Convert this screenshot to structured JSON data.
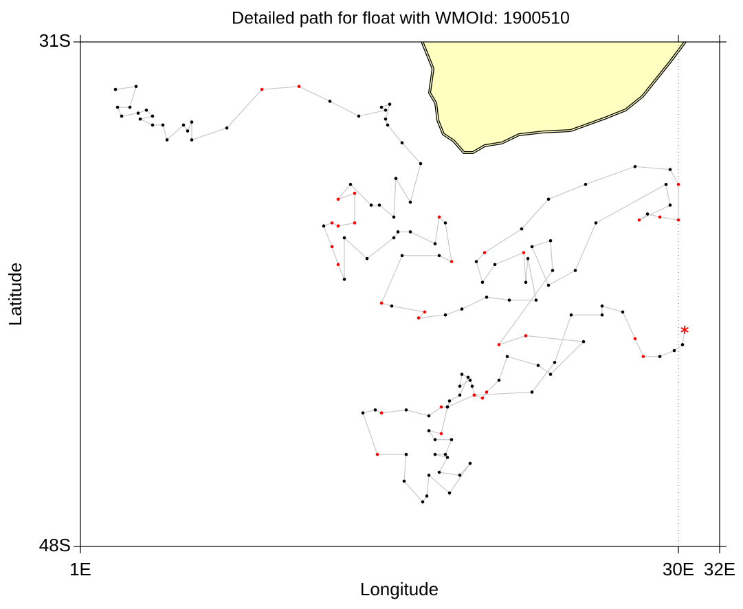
{
  "chart_data": {
    "type": "trajectory",
    "title": "Detailed path for float with WMOId: 1900510",
    "x_label": "Longitude",
    "y_label": "Latitude",
    "xlim": [
      1,
      32
    ],
    "ylim": [
      -48,
      -31
    ],
    "xticks": [
      {
        "value": 1,
        "label": "1E"
      },
      {
        "value": 30,
        "label": "30E"
      },
      {
        "value": 32,
        "label": "32E"
      }
    ],
    "yticks": [
      {
        "value": -48,
        "label": "48S"
      },
      {
        "value": -31,
        "label": "31S"
      }
    ],
    "land_color": "#ffffc0",
    "end_marker": "asterisk",
    "series": [
      {
        "color": "#c8c8c8",
        "x": [
          2.7,
          3.7,
          3.4,
          2.8,
          3.0,
          3.8,
          4.2,
          4.5,
          3.9,
          4.5,
          5.0,
          5.2,
          6.0,
          6.2,
          6.4,
          6.4,
          8.1,
          9.8,
          11.6,
          13.1,
          14.5,
          15.8,
          15.6,
          16.0,
          15.8,
          15.9,
          16.6,
          17.5,
          17.0,
          16.3,
          16.2,
          15.5,
          15.1,
          14.1,
          13.5,
          14.3,
          14.3,
          13.5,
          13.2,
          12.8,
          13.2,
          13.5,
          13.8,
          13.8,
          14.9,
          16.2,
          16.4,
          17.0,
          18.2,
          18.4,
          18.7,
          19.0,
          18.4,
          16.6,
          15.6,
          16.1,
          17.7,
          17.4,
          18.7,
          19.5,
          20.7,
          21.8,
          23.1,
          22.7,
          22.6,
          22.5,
          21.1,
          20.5,
          20.2,
          20.6,
          22.4,
          23.7,
          25.5,
          27.9,
          29.6,
          30.0,
          30.0,
          29.1,
          28.5,
          28.1,
          29.6,
          29.4,
          26.0,
          25.0,
          23.7,
          22.9,
          23.8,
          23.9,
          21.3,
          22.6,
          25.4,
          23.8,
          23.2,
          21.7,
          21.3,
          20.7,
          20.5,
          20.1,
          20.0,
          19.9,
          19.4,
          19.5,
          19.8,
          19.4,
          18.9,
          18.8,
          18.5,
          17.9,
          16.8,
          15.6,
          15.3,
          14.7,
          15.4,
          16.8,
          16.7,
          17.6,
          17.8,
          17.9,
          18.9,
          19.9,
          19.4,
          18.4,
          18.8,
          18.2,
          18.7,
          19.0,
          18.2,
          17.9,
          18.5,
          18.8,
          20.1,
          22.9,
          24.0,
          24.8,
          26.3,
          26.3,
          27.3,
          27.9,
          28.3,
          29.1,
          29.8,
          30.2,
          30.3
        ],
        "y": [
          -32.6,
          -32.5,
          -33.2,
          -33.2,
          -33.5,
          -33.4,
          -33.3,
          -33.5,
          -33.6,
          -33.8,
          -33.8,
          -34.3,
          -33.8,
          -34.0,
          -33.7,
          -34.3,
          -33.9,
          -32.6,
          -32.5,
          -33.0,
          -33.5,
          -33.3,
          -33.2,
          -33.1,
          -33.6,
          -33.8,
          -34.4,
          -35.1,
          -36.4,
          -35.6,
          -36.9,
          -36.5,
          -36.5,
          -35.8,
          -36.3,
          -36.1,
          -37.1,
          -37.2,
          -37.1,
          -37.2,
          -37.9,
          -38.5,
          -39.0,
          -37.6,
          -38.3,
          -37.6,
          -37.4,
          -37.4,
          -37.8,
          -36.9,
          -37.1,
          -38.4,
          -38.2,
          -38.2,
          -39.8,
          -39.9,
          -40.1,
          -40.3,
          -40.2,
          -40.0,
          -39.6,
          -39.7,
          -39.7,
          -38.3,
          -39.1,
          -38.1,
          -38.5,
          -39.1,
          -38.4,
          -38.1,
          -37.3,
          -36.3,
          -35.8,
          -35.2,
          -35.3,
          -35.8,
          -37.0,
          -36.9,
          -36.8,
          -37.0,
          -36.5,
          -35.8,
          -37.1,
          -38.7,
          -39.2,
          -37.9,
          -37.7,
          -38.7,
          -41.2,
          -40.9,
          -41.1,
          -42.2,
          -41.9,
          -41.6,
          -42.4,
          -42.8,
          -43.0,
          -42.9,
          -42.6,
          -42.4,
          -42.6,
          -42.2,
          -42.3,
          -42.9,
          -43.1,
          -43.3,
          -43.3,
          -43.6,
          -43.4,
          -43.5,
          -43.4,
          -43.5,
          -44.9,
          -44.9,
          -45.8,
          -46.5,
          -46.3,
          -45.6,
          -46.2,
          -45.2,
          -45.6,
          -45.5,
          -45.0,
          -44.9,
          -44.9,
          -44.4,
          -44.4,
          -44.1,
          -44.2,
          -43.3,
          -42.9,
          -42.8,
          -41.8,
          -40.2,
          -40.2,
          -39.9,
          -40.1,
          -41.0,
          -41.6,
          -41.6,
          -41.4,
          -41.2,
          -40.7
        ],
        "marker_colors": [
          "black",
          "black",
          "black",
          "black",
          "black",
          "black",
          "black",
          "black",
          "black",
          "black",
          "black",
          "black",
          "black",
          "black",
          "black",
          "black",
          "black",
          "red",
          "red",
          "black",
          "black",
          "black",
          "black",
          "black",
          "black",
          "black",
          "black",
          "black",
          "black",
          "black",
          "black",
          "black",
          "black",
          "black",
          "red",
          "red",
          "red",
          "red",
          "red",
          "black",
          "red",
          "red",
          "black",
          "black",
          "black",
          "black",
          "black",
          "black",
          "black",
          "red",
          "black",
          "red",
          "black",
          "black",
          "red",
          "black",
          "red",
          "red",
          "black",
          "black",
          "black",
          "black",
          "black",
          "black",
          "black",
          "red",
          "black",
          "black",
          "black",
          "red",
          "black",
          "black",
          "black",
          "black",
          "black",
          "red",
          "red",
          "red",
          "black",
          "red",
          "black",
          "black",
          "black",
          "black",
          "black",
          "black",
          "black",
          "black",
          "red",
          "red",
          "black",
          "black",
          "black",
          "black",
          "black",
          "red",
          "red",
          "black",
          "black",
          "black",
          "black",
          "black",
          "black",
          "black",
          "black",
          "black",
          "red",
          "black",
          "black",
          "red",
          "black",
          "black",
          "red",
          "black",
          "black",
          "black",
          "black",
          "black",
          "black",
          "black",
          "black",
          "black",
          "black",
          "black",
          "black",
          "black",
          "black",
          "black",
          "red",
          "black",
          "red",
          "black",
          "black",
          "black",
          "black",
          "black",
          "black",
          "red",
          "red",
          "black",
          "black",
          "black",
          "red"
        ]
      }
    ]
  }
}
